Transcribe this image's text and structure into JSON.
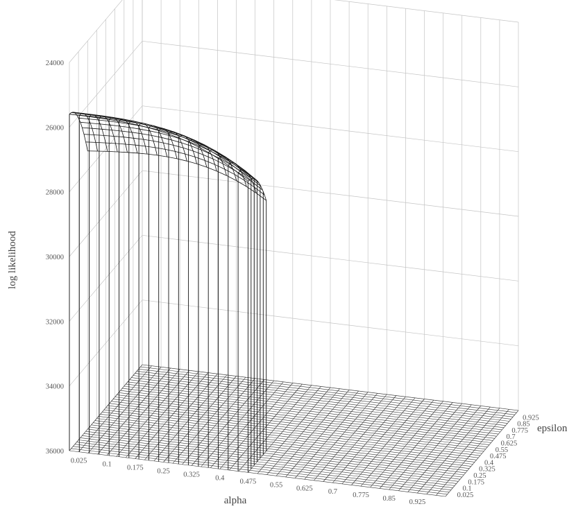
{
  "chart_data": {
    "type": "surface3d",
    "title": "",
    "z_label": "log likelihood",
    "x_label": "alpha",
    "y_label": "epsilon",
    "z_ticks": [
      "24000",
      "26000",
      "28000",
      "30000",
      "32000",
      "34000",
      "36000"
    ],
    "z_range": [
      -36000,
      -24000
    ],
    "x_ticks": [
      "0.025",
      "0.1",
      "0.175",
      "0.25",
      "0.325",
      "0.4",
      "0.475",
      "0.55",
      "0.625",
      "0.7",
      "0.775",
      "0.85",
      "0.925"
    ],
    "y_ticks": [
      "0.025",
      "0.1",
      "0.175",
      "0.25",
      "0.325",
      "0.4",
      "0.475",
      "0.55",
      "0.625",
      "0.7",
      "0.775",
      "0.85",
      "0.925"
    ],
    "surface": {
      "description_values": "log likelihood peaks near -25600 for alpha ≤ 0.475 and epsilon ≤ 0.25, falling to the floor (-36000) elsewhere",
      "peak_value": -25600,
      "floor_value": -36000,
      "alpha_cutoff": 0.475,
      "epsilon_cutoff": 0.25
    },
    "grid": true
  }
}
